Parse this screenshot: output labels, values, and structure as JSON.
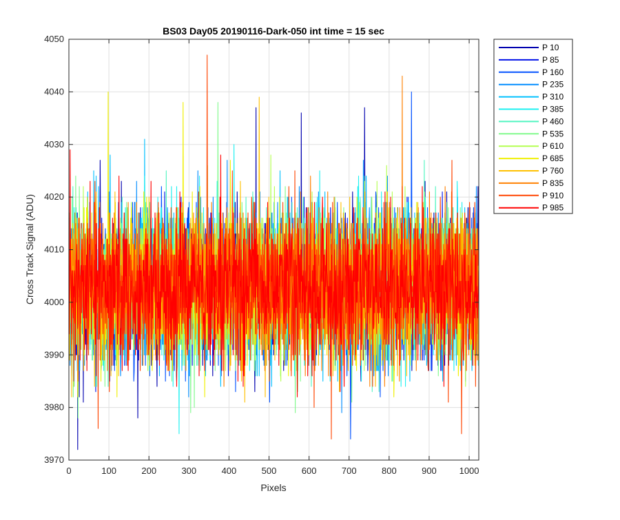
{
  "chart_data": {
    "type": "line",
    "title": "BS03 Day05 20190116-Dark-050 int time = 15 sec",
    "xlabel": "Pixels",
    "ylabel": "Cross Track Signal (ADU)",
    "xlim": [
      0,
      1024
    ],
    "ylim": [
      3970,
      4050
    ],
    "xticks": [
      0,
      100,
      200,
      300,
      400,
      500,
      600,
      700,
      800,
      900,
      1000
    ],
    "yticks": [
      3970,
      3980,
      3990,
      4000,
      4010,
      4020,
      4030,
      4040,
      4050
    ],
    "grid": true,
    "legend_position": "outside-top-right",
    "noise": {
      "mean": 4003,
      "std": 7,
      "min": 3972,
      "max": 4047,
      "num_points": 1024
    },
    "series": [
      {
        "name": "P 10",
        "color": "#0000af"
      },
      {
        "name": "P 85",
        "color": "#0010e8"
      },
      {
        "name": "P 160",
        "color": "#0050ff"
      },
      {
        "name": "P 235",
        "color": "#008cff"
      },
      {
        "name": "P 310",
        "color": "#00c0ff"
      },
      {
        "name": "P 385",
        "color": "#1ef0f0"
      },
      {
        "name": "P 460",
        "color": "#50f5c0"
      },
      {
        "name": "P 535",
        "color": "#80fa8c"
      },
      {
        "name": "P 610",
        "color": "#b4ff50"
      },
      {
        "name": "P 685",
        "color": "#f0f000"
      },
      {
        "name": "P 760",
        "color": "#ffc000"
      },
      {
        "name": "P 835",
        "color": "#ff8000"
      },
      {
        "name": "P 910",
        "color": "#ff4400"
      },
      {
        "name": "P 985",
        "color": "#ff0000"
      }
    ],
    "peaks": [
      {
        "series": "P 10",
        "x": 22,
        "y": 3972
      },
      {
        "series": "P 985",
        "x": 3,
        "y": 4029
      },
      {
        "series": "P 685",
        "x": 98,
        "y": 4040
      },
      {
        "series": "P 685",
        "x": 285,
        "y": 4038
      },
      {
        "series": "P 910",
        "x": 345,
        "y": 4047
      },
      {
        "series": "P 535",
        "x": 372,
        "y": 4038
      },
      {
        "series": "P 760",
        "x": 475,
        "y": 4039
      },
      {
        "series": "P 10",
        "x": 467,
        "y": 4037
      },
      {
        "series": "P 10",
        "x": 580,
        "y": 4036
      },
      {
        "series": "P 10",
        "x": 738,
        "y": 4037
      },
      {
        "series": "P 835",
        "x": 832,
        "y": 4043
      },
      {
        "series": "P 160",
        "x": 855,
        "y": 4040
      },
      {
        "series": "P 910",
        "x": 655,
        "y": 3974
      },
      {
        "series": "P 160",
        "x": 703,
        "y": 3974
      },
      {
        "series": "P 910",
        "x": 980,
        "y": 3975
      },
      {
        "series": "P 385",
        "x": 275,
        "y": 3975
      },
      {
        "series": "P 910",
        "x": 73,
        "y": 3976
      }
    ]
  }
}
